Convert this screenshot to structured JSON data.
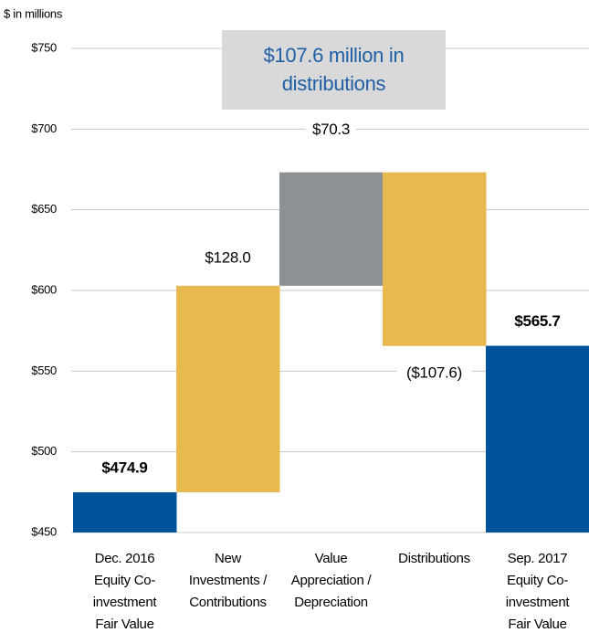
{
  "chart_data": {
    "type": "waterfall",
    "y_axis_label": "$ in millions",
    "annotation": "$107.6 million in distributions",
    "categories": [
      [
        "Dec. 2016",
        "Equity Co-",
        "investment",
        "Fair Value"
      ],
      [
        "New",
        "Investments /",
        "Contributions"
      ],
      [
        "Value",
        "Appreciation /",
        "Depreciation"
      ],
      [
        "Distributions"
      ],
      [
        "Sep. 2017",
        "Equity Co-",
        "investment",
        "Fair Value"
      ]
    ],
    "values": [
      474.9,
      128.0,
      70.3,
      -107.6,
      565.7
    ],
    "value_labels": [
      "$474.9",
      "$128.0",
      "$70.3",
      "($107.6)",
      "$565.7"
    ],
    "kinds": [
      "total",
      "delta",
      "delta",
      "delta",
      "total"
    ],
    "colors": [
      "#00529b",
      "#e8b94f",
      "#8c9194",
      "#e8b94f",
      "#00529b"
    ],
    "ylim": [
      450,
      750
    ],
    "yticks": [
      {
        "value": 450,
        "label": "$450"
      },
      {
        "value": 500,
        "label": "$500"
      },
      {
        "value": 550,
        "label": "$550"
      },
      {
        "value": 600,
        "label": "$600"
      },
      {
        "value": 650,
        "label": "$650"
      },
      {
        "value": 700,
        "label": "$700"
      },
      {
        "value": 750,
        "label": "$750"
      }
    ],
    "grid": true
  }
}
